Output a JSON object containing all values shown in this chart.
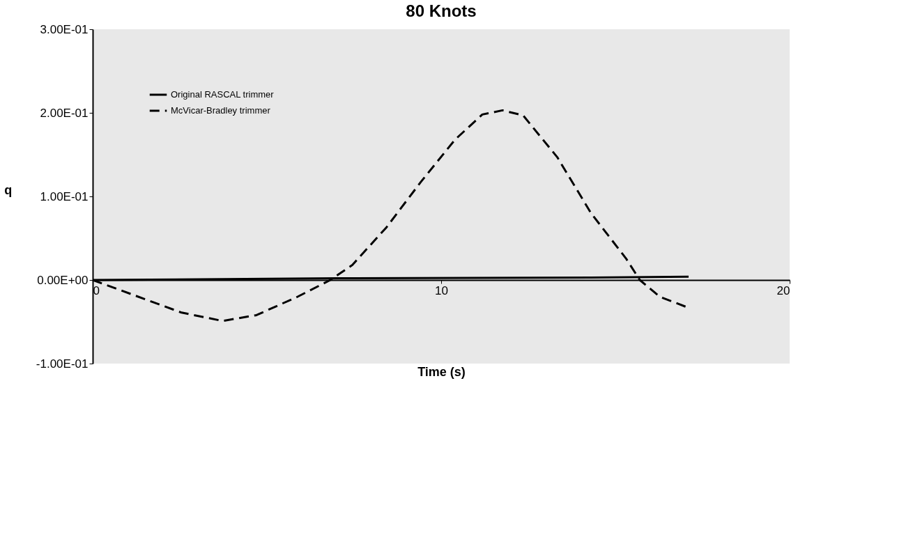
{
  "chart_data": {
    "type": "line",
    "title": "80 Knots",
    "xlabel": "Time (s)",
    "ylabel": "q",
    "xlim": [
      0,
      20
    ],
    "xticks": [
      0,
      10,
      20
    ],
    "ylim": [
      -0.1,
      0.3
    ],
    "yticks": [
      {
        "value": -0.1,
        "label": "-1.00E-01"
      },
      {
        "value": 0,
        "label": "0.00E+00"
      },
      {
        "value": 0.1,
        "label": "1.00E-01"
      },
      {
        "value": 0.2,
        "label": "2.00E-01"
      },
      {
        "value": 0.3,
        "label": "3.00E-01"
      }
    ],
    "grid": false,
    "legend": "top left",
    "marker": "none",
    "series": [
      {
        "name": "Original RASCAL trimmer",
        "color": "#000000",
        "line_style": "solid",
        "x": [
          0,
          7,
          14.3,
          17.1
        ],
        "values": [
          0,
          0.002,
          0.003,
          0.004
        ]
      },
      {
        "name": "McVicar-Bradley trimmer",
        "color": "#000000",
        "line_style": "dashed",
        "x": [
          0,
          1.57,
          2.55,
          3.73,
          4.7,
          5.88,
          6.82,
          7.45,
          8.43,
          9.41,
          10.4,
          11.18,
          11.76,
          12.35,
          13.33,
          14.3,
          15.3,
          15.7,
          16.27,
          17.02
        ],
        "values": [
          0,
          -0.024,
          -0.039,
          -0.049,
          -0.042,
          -0.02,
          0,
          0.018,
          0.063,
          0.117,
          0.168,
          0.198,
          0.203,
          0.197,
          0.147,
          0.08,
          0.026,
          0,
          -0.02,
          -0.032
        ]
      }
    ]
  }
}
